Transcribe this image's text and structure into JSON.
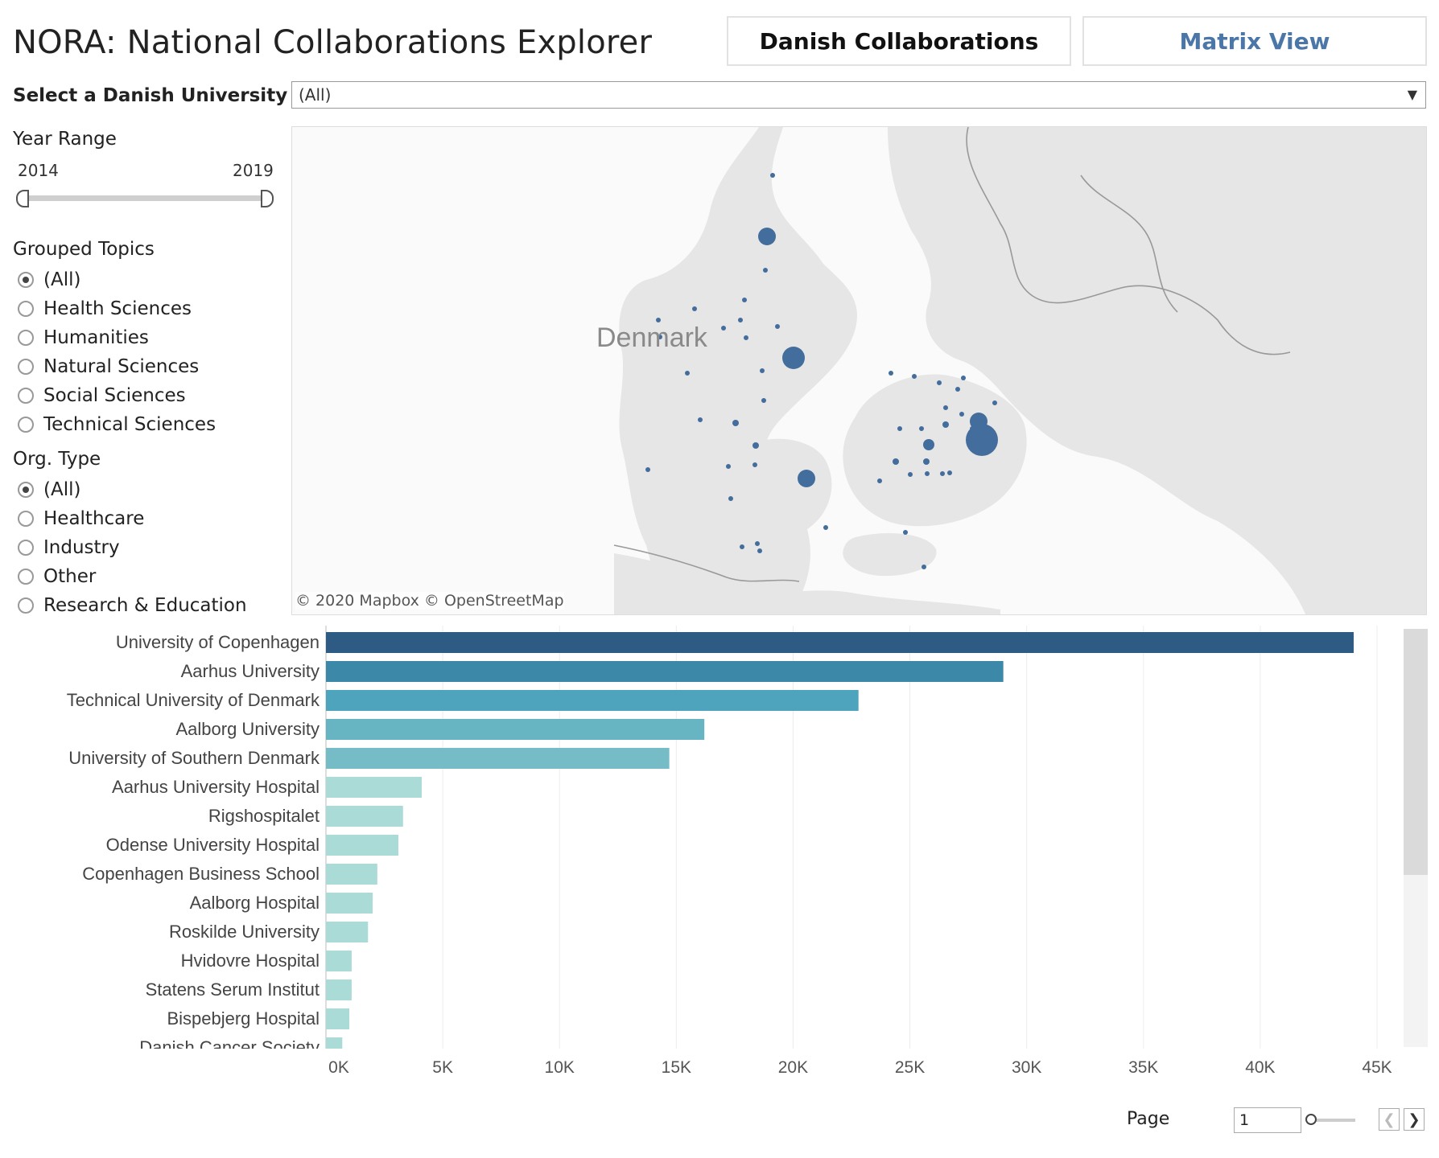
{
  "header": {
    "title": "NORA: National Collaborations Explorer",
    "tabs": [
      {
        "label": "Danish Collaborations"
      },
      {
        "label": "Matrix View"
      }
    ]
  },
  "filters": {
    "university_label": "Select a Danish University",
    "university_value": "(All)",
    "year_label": "Year Range",
    "year_start": "2014",
    "year_end": "2019",
    "topics_label": "Grouped Topics",
    "topics": [
      "(All)",
      "Health Sciences",
      "Humanities",
      "Natural Sciences",
      "Social Sciences",
      "Technical Sciences"
    ],
    "org_label": "Org. Type",
    "org_types": [
      "(All)",
      "Healthcare",
      "Industry",
      "Other",
      "Research & Education"
    ]
  },
  "map": {
    "country_label": "Denmark",
    "attribution": "© 2020 Mapbox  © OpenStreetMap"
  },
  "chart_data": {
    "type": "bar",
    "orientation": "horizontal",
    "categories": [
      "University of Copenhagen",
      "Aarhus University",
      "Technical University of Denmark",
      "Aalborg University",
      "University of Southern Denmark",
      "Aarhus University Hospital",
      "Rigshospitalet",
      "Odense University Hospital",
      "Copenhagen Business School",
      "Aalborg Hospital",
      "Roskilde University",
      "Hvidovre Hospital",
      "Statens Serum Institut",
      "Bispebjerg Hospital",
      "Danish Cancer Society"
    ],
    "values": [
      44000,
      29000,
      22800,
      16200,
      14700,
      4100,
      3300,
      3100,
      2200,
      2000,
      1800,
      1100,
      1100,
      1000,
      700
    ],
    "xlim": [
      0,
      45000
    ],
    "ticks": [
      "0K",
      "5K",
      "10K",
      "15K",
      "20K",
      "25K",
      "30K",
      "35K",
      "40K",
      "45K"
    ],
    "colors": [
      "#2d5b84",
      "#3b88a8",
      "#4ea3bd",
      "#67b4c3",
      "#76bcc6",
      "#abdbd7",
      "#abdbd7",
      "#abdbd7",
      "#abdbd7",
      "#abdbd7",
      "#abdbd7",
      "#abdbd7",
      "#abdbd7",
      "#abdbd7",
      "#abdbd7"
    ],
    "grid": true
  },
  "pager": {
    "label": "Page",
    "value": "1"
  },
  "colors": {
    "accent": "#4a77a8",
    "marker": "#436d9c"
  }
}
